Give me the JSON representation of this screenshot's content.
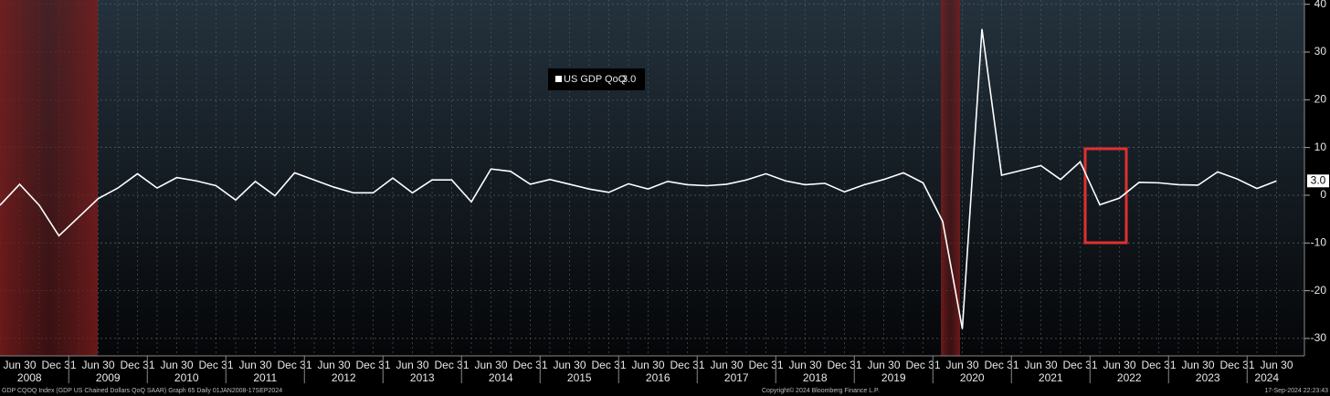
{
  "chart_data": {
    "type": "line",
    "categories": [
      null,
      "Jun 30",
      null,
      "Dec 31",
      null,
      "Jun 30",
      null,
      "Dec 31",
      null,
      "Jun 30",
      null,
      "Dec 31",
      null,
      "Jun 30",
      null,
      "Dec 31",
      null,
      "Jun 30",
      null,
      "Dec 31",
      null,
      "Jun 30",
      null,
      "Dec 31",
      null,
      "Jun 30",
      null,
      "Dec 31",
      null,
      "Jun 30",
      null,
      "Dec 31",
      null,
      "Jun 30",
      null,
      "Dec 31",
      null,
      "Jun 30",
      null,
      "Dec 31",
      null,
      "Jun 30",
      null,
      "Dec 31",
      null,
      "Jun 30",
      null,
      "Dec 31",
      null,
      "Jun 30",
      null,
      "Dec 31",
      null,
      "Jun 30",
      null,
      "Dec 31",
      null,
      "Jun 30",
      null,
      "Dec 31",
      null,
      "Jun 30",
      null,
      "Dec 31",
      null,
      "Jun 30"
    ],
    "years": [
      "2008",
      "2009",
      "2010",
      "2011",
      "2012",
      "2013",
      "2014",
      "2015",
      "2016",
      "2017",
      "2018",
      "2019",
      "2020",
      "2021",
      "2022",
      "2023",
      "2024"
    ],
    "series": [
      {
        "name": "US GDP QoQ",
        "color": "#ffffff",
        "values": [
          -2.1,
          2.3,
          -2.1,
          -8.5,
          -4.6,
          -0.7,
          1.5,
          4.5,
          1.5,
          3.7,
          3.0,
          2.0,
          -1.0,
          2.9,
          -0.1,
          4.7,
          3.2,
          1.7,
          0.5,
          0.5,
          3.6,
          0.5,
          3.2,
          3.2,
          -1.4,
          5.5,
          5.0,
          2.3,
          3.3,
          2.3,
          1.3,
          0.6,
          2.4,
          1.3,
          2.9,
          2.2,
          2.0,
          2.3,
          3.2,
          4.5,
          3.0,
          2.2,
          2.5,
          0.7,
          2.2,
          3.3,
          4.7,
          2.6,
          -5.5,
          -28.0,
          34.8,
          4.2,
          5.2,
          6.2,
          3.3,
          7.0,
          -2.0,
          -0.6,
          2.7,
          2.6,
          2.2,
          2.1,
          4.9,
          3.4,
          1.4,
          3.0
        ],
        "value_labels": [
          null,
          null,
          null,
          null,
          null,
          null,
          null,
          null,
          null,
          null,
          null,
          null,
          null,
          null,
          null,
          null,
          null,
          null,
          null,
          null,
          null,
          null,
          null,
          null,
          null,
          null,
          null,
          null,
          null,
          null,
          null,
          null,
          null,
          null,
          null,
          null,
          null,
          null,
          null,
          null,
          null,
          null,
          null,
          null,
          null,
          null,
          null,
          null,
          null,
          null,
          null,
          null,
          null,
          null,
          null,
          null,
          null,
          null,
          null,
          null,
          null,
          null,
          null,
          null,
          null,
          "3.0"
        ]
      }
    ],
    "ylim": [
      -33.65,
      40.9
    ],
    "yticks": [
      -30,
      -20,
      -10,
      0,
      10,
      20,
      30,
      40
    ],
    "grid": true,
    "footer": {
      "left": "GDP CQOQ Index (GDP US Chained Dollars QoQ SAAR) Graph 65  Daily 01JAN2008-17SEP2024",
      "center": "Copyright© 2024 Bloomberg Finance L.P.",
      "right": "17-Sep-2024 22:23:43"
    }
  }
}
